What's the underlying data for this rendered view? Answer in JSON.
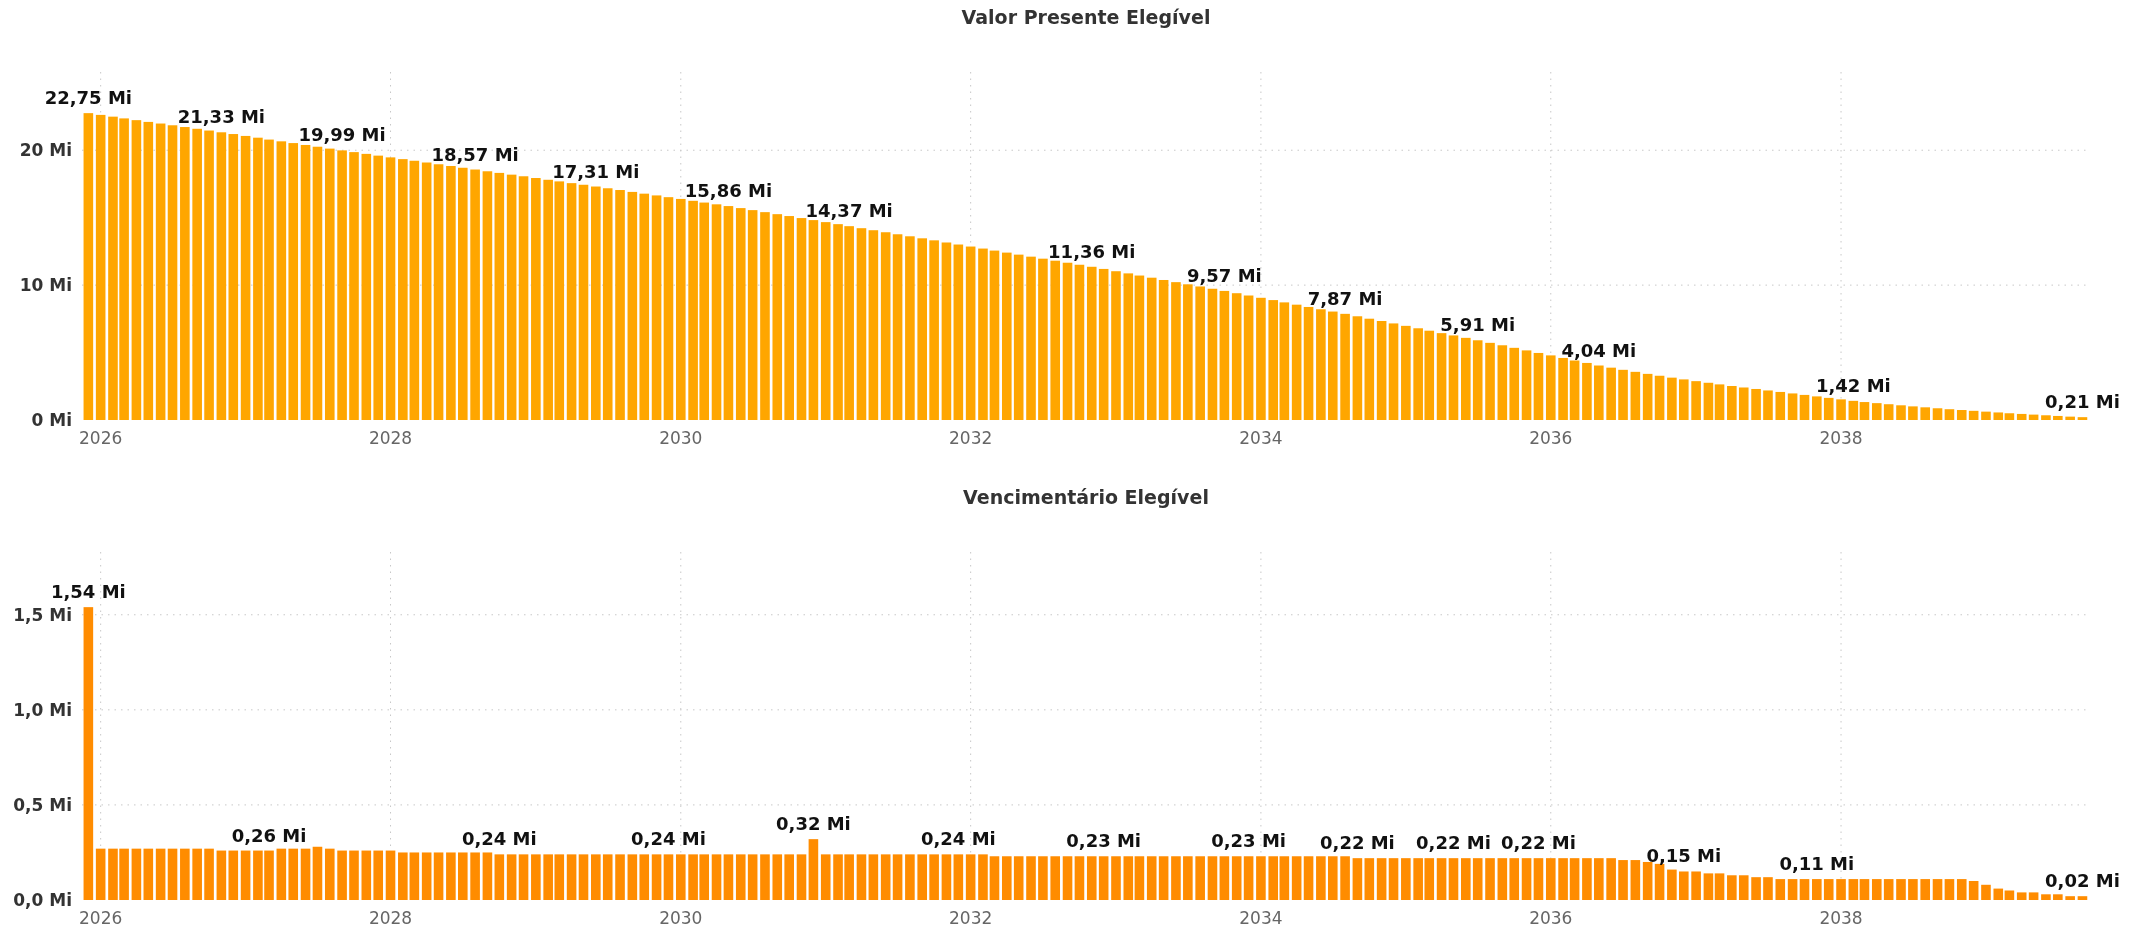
{
  "chart_data": [
    {
      "type": "bar",
      "title": "Valor Presente Elegível",
      "color": "#ffa600",
      "grid": true,
      "x": [
        "2025-12",
        "2026-01",
        "2026-02",
        "2026-03",
        "2026-04",
        "2026-05",
        "2026-06",
        "2026-07",
        "2026-08",
        "2026-09",
        "2026-10",
        "2026-11",
        "2026-12",
        "2027-01",
        "2027-02",
        "2027-03",
        "2027-04",
        "2027-05",
        "2027-06",
        "2027-07",
        "2027-08",
        "2027-09",
        "2027-10",
        "2027-11",
        "2027-12",
        "2028-01",
        "2028-02",
        "2028-03",
        "2028-04",
        "2028-05",
        "2028-06",
        "2028-07",
        "2028-08",
        "2028-09",
        "2028-10",
        "2028-11",
        "2028-12",
        "2029-01",
        "2029-02",
        "2029-03",
        "2029-04",
        "2029-05",
        "2029-06",
        "2029-07",
        "2029-08",
        "2029-09",
        "2029-10",
        "2029-11",
        "2029-12",
        "2030-01",
        "2030-02",
        "2030-03",
        "2030-04",
        "2030-05",
        "2030-06",
        "2030-07",
        "2030-08",
        "2030-09",
        "2030-10",
        "2030-11",
        "2030-12",
        "2031-01",
        "2031-02",
        "2031-03",
        "2031-04",
        "2031-05",
        "2031-06",
        "2031-07",
        "2031-08",
        "2031-09",
        "2031-10",
        "2031-11",
        "2031-12",
        "2032-01",
        "2032-02",
        "2032-03",
        "2032-04",
        "2032-05",
        "2032-06",
        "2032-07",
        "2032-08",
        "2032-09",
        "2032-10",
        "2032-11",
        "2032-12",
        "2033-01",
        "2033-02",
        "2033-03",
        "2033-04",
        "2033-05",
        "2033-06",
        "2033-07",
        "2033-08",
        "2033-09",
        "2033-10",
        "2033-11",
        "2033-12",
        "2034-01",
        "2034-02",
        "2034-03",
        "2034-04",
        "2034-05",
        "2034-06",
        "2034-07",
        "2034-08",
        "2034-09",
        "2034-10",
        "2034-11",
        "2034-12",
        "2035-01",
        "2035-02",
        "2035-03",
        "2035-04",
        "2035-05",
        "2035-06",
        "2035-07",
        "2035-08",
        "2035-09",
        "2035-10",
        "2035-11",
        "2035-12",
        "2036-01",
        "2036-02",
        "2036-03",
        "2036-04",
        "2036-05",
        "2036-06",
        "2036-07",
        "2036-08",
        "2036-09",
        "2036-10",
        "2036-11",
        "2036-12",
        "2037-01",
        "2037-02",
        "2037-03",
        "2037-04",
        "2037-05",
        "2037-06",
        "2037-07",
        "2037-08",
        "2037-09",
        "2037-10",
        "2037-11",
        "2037-12",
        "2038-01",
        "2038-02",
        "2038-03",
        "2038-04",
        "2038-05",
        "2038-06",
        "2038-07",
        "2038-08",
        "2038-09",
        "2038-10",
        "2038-11",
        "2038-12",
        "2039-01",
        "2039-02",
        "2039-03",
        "2039-04",
        "2039-05",
        "2039-06",
        "2039-07",
        "2039-08",
        "2039-09"
      ],
      "values": [
        22.75,
        22.62,
        22.49,
        22.36,
        22.23,
        22.1,
        21.98,
        21.85,
        21.72,
        21.59,
        21.46,
        21.33,
        21.2,
        21.06,
        20.93,
        20.79,
        20.66,
        20.53,
        20.39,
        20.26,
        20.12,
        19.99,
        19.86,
        19.73,
        19.6,
        19.47,
        19.34,
        19.22,
        19.09,
        18.96,
        18.83,
        18.7,
        18.57,
        18.44,
        18.32,
        18.19,
        18.07,
        17.94,
        17.81,
        17.69,
        17.56,
        17.44,
        17.31,
        17.18,
        17.05,
        16.91,
        16.78,
        16.65,
        16.52,
        16.39,
        16.25,
        16.12,
        15.99,
        15.86,
        15.71,
        15.56,
        15.41,
        15.26,
        15.12,
        14.97,
        14.82,
        14.67,
        14.52,
        14.37,
        14.22,
        14.07,
        13.92,
        13.77,
        13.62,
        13.47,
        13.32,
        13.16,
        13.01,
        12.86,
        12.71,
        12.56,
        12.41,
        12.26,
        12.11,
        11.96,
        11.81,
        11.66,
        11.51,
        11.36,
        11.2,
        11.03,
        10.87,
        10.71,
        10.55,
        10.38,
        10.22,
        10.06,
        9.9,
        9.73,
        9.57,
        9.4,
        9.23,
        9.06,
        8.89,
        8.72,
        8.55,
        8.38,
        8.21,
        8.04,
        7.87,
        7.69,
        7.51,
        7.34,
        7.16,
        6.98,
        6.8,
        6.62,
        6.44,
        6.27,
        6.09,
        5.91,
        5.72,
        5.54,
        5.35,
        5.16,
        4.97,
        4.79,
        4.6,
        4.41,
        4.23,
        4.04,
        3.88,
        3.72,
        3.57,
        3.42,
        3.28,
        3.14,
        3.01,
        2.88,
        2.76,
        2.64,
        2.52,
        2.41,
        2.3,
        2.19,
        2.08,
        1.97,
        1.86,
        1.75,
        1.64,
        1.53,
        1.42,
        1.33,
        1.25,
        1.17,
        1.09,
        1.01,
        0.94,
        0.87,
        0.8,
        0.74,
        0.68,
        0.62,
        0.56,
        0.5,
        0.45,
        0.4,
        0.35,
        0.3,
        0.25,
        0.21
      ],
      "value_labels": [
        "22,75 Mi",
        null,
        null,
        null,
        null,
        null,
        null,
        null,
        null,
        null,
        null,
        "21,33 Mi",
        null,
        null,
        null,
        null,
        null,
        null,
        null,
        null,
        null,
        "19,99 Mi",
        null,
        null,
        null,
        null,
        null,
        null,
        null,
        null,
        null,
        null,
        "18,57 Mi",
        null,
        null,
        null,
        null,
        null,
        null,
        null,
        null,
        null,
        "17,31 Mi",
        null,
        null,
        null,
        null,
        null,
        null,
        null,
        null,
        null,
        null,
        "15,86 Mi",
        null,
        null,
        null,
        null,
        null,
        null,
        null,
        null,
        null,
        "14,37 Mi",
        null,
        null,
        null,
        null,
        null,
        null,
        null,
        null,
        null,
        null,
        null,
        null,
        null,
        null,
        null,
        null,
        null,
        null,
        null,
        "11,36 Mi",
        null,
        null,
        null,
        null,
        null,
        null,
        null,
        null,
        null,
        null,
        "9,57 Mi",
        null,
        null,
        null,
        null,
        null,
        null,
        null,
        null,
        null,
        "7,87 Mi",
        null,
        null,
        null,
        null,
        null,
        null,
        null,
        null,
        null,
        null,
        "5,91 Mi",
        null,
        null,
        null,
        null,
        null,
        null,
        null,
        null,
        null,
        "4,04 Mi",
        null,
        null,
        null,
        null,
        null,
        null,
        null,
        null,
        null,
        null,
        null,
        null,
        null,
        null,
        null,
        null,
        null,
        null,
        null,
        null,
        "1,42 Mi",
        null,
        null,
        null,
        null,
        null,
        null,
        null,
        null,
        null,
        null,
        null,
        null,
        null,
        null,
        null,
        null,
        null,
        null,
        "0,21 Mi"
      ],
      "xlim": [
        "2025-11-15",
        "2039-09-20"
      ],
      "xticks": [
        "2026",
        "2028",
        "2030",
        "2032",
        "2034",
        "2036",
        "2038"
      ],
      "ylim": [
        0,
        25.8
      ],
      "yticks": [
        {
          "value": 0,
          "label": "0 Mi"
        },
        {
          "value": 10,
          "label": "10 Mi"
        },
        {
          "value": 20,
          "label": "20 Mi"
        }
      ]
    },
    {
      "type": "bar",
      "title": "Vencimentário Elegível",
      "color": "#ff8c00",
      "grid": true,
      "x": [
        "2025-12",
        "2026-01",
        "2026-02",
        "2026-03",
        "2026-04",
        "2026-05",
        "2026-06",
        "2026-07",
        "2026-08",
        "2026-09",
        "2026-10",
        "2026-11",
        "2026-12",
        "2027-01",
        "2027-02",
        "2027-03",
        "2027-04",
        "2027-05",
        "2027-06",
        "2027-07",
        "2027-08",
        "2027-09",
        "2027-10",
        "2027-11",
        "2027-12",
        "2028-01",
        "2028-02",
        "2028-03",
        "2028-04",
        "2028-05",
        "2028-06",
        "2028-07",
        "2028-08",
        "2028-09",
        "2028-10",
        "2028-11",
        "2028-12",
        "2029-01",
        "2029-02",
        "2029-03",
        "2029-04",
        "2029-05",
        "2029-06",
        "2029-07",
        "2029-08",
        "2029-09",
        "2029-10",
        "2029-11",
        "2029-12",
        "2030-01",
        "2030-02",
        "2030-03",
        "2030-04",
        "2030-05",
        "2030-06",
        "2030-07",
        "2030-08",
        "2030-09",
        "2030-10",
        "2030-11",
        "2030-12",
        "2031-01",
        "2031-02",
        "2031-03",
        "2031-04",
        "2031-05",
        "2031-06",
        "2031-07",
        "2031-08",
        "2031-09",
        "2031-10",
        "2031-11",
        "2031-12",
        "2032-01",
        "2032-02",
        "2032-03",
        "2032-04",
        "2032-05",
        "2032-06",
        "2032-07",
        "2032-08",
        "2032-09",
        "2032-10",
        "2032-11",
        "2032-12",
        "2033-01",
        "2033-02",
        "2033-03",
        "2033-04",
        "2033-05",
        "2033-06",
        "2033-07",
        "2033-08",
        "2033-09",
        "2033-10",
        "2033-11",
        "2033-12",
        "2034-01",
        "2034-02",
        "2034-03",
        "2034-04",
        "2034-05",
        "2034-06",
        "2034-07",
        "2034-08",
        "2034-09",
        "2034-10",
        "2034-11",
        "2034-12",
        "2035-01",
        "2035-02",
        "2035-03",
        "2035-04",
        "2035-05",
        "2035-06",
        "2035-07",
        "2035-08",
        "2035-09",
        "2035-10",
        "2035-11",
        "2035-12",
        "2036-01",
        "2036-02",
        "2036-03",
        "2036-04",
        "2036-05",
        "2036-06",
        "2036-07",
        "2036-08",
        "2036-09",
        "2036-10",
        "2036-11",
        "2036-12",
        "2037-01",
        "2037-02",
        "2037-03",
        "2037-04",
        "2037-05",
        "2037-06",
        "2037-07",
        "2037-08",
        "2037-09",
        "2037-10",
        "2037-11",
        "2037-12",
        "2038-01",
        "2038-02",
        "2038-03",
        "2038-04",
        "2038-05",
        "2038-06",
        "2038-07",
        "2038-08",
        "2038-09",
        "2038-10",
        "2038-11",
        "2038-12",
        "2039-01",
        "2039-02",
        "2039-03",
        "2039-04",
        "2039-05",
        "2039-06",
        "2039-07",
        "2039-08",
        "2039-09"
      ],
      "values": [
        1.54,
        0.27,
        0.27,
        0.27,
        0.27,
        0.27,
        0.27,
        0.27,
        0.27,
        0.27,
        0.27,
        0.26,
        0.26,
        0.26,
        0.26,
        0.26,
        0.27,
        0.27,
        0.27,
        0.28,
        0.27,
        0.26,
        0.26,
        0.26,
        0.26,
        0.26,
        0.25,
        0.25,
        0.25,
        0.25,
        0.25,
        0.25,
        0.25,
        0.25,
        0.24,
        0.24,
        0.24,
        0.24,
        0.24,
        0.24,
        0.24,
        0.24,
        0.24,
        0.24,
        0.24,
        0.24,
        0.24,
        0.24,
        0.24,
        0.24,
        0.24,
        0.24,
        0.24,
        0.24,
        0.24,
        0.24,
        0.24,
        0.24,
        0.24,
        0.24,
        0.32,
        0.24,
        0.24,
        0.24,
        0.24,
        0.24,
        0.24,
        0.24,
        0.24,
        0.24,
        0.24,
        0.24,
        0.24,
        0.24,
        0.24,
        0.23,
        0.23,
        0.23,
        0.23,
        0.23,
        0.23,
        0.23,
        0.23,
        0.23,
        0.23,
        0.23,
        0.23,
        0.23,
        0.23,
        0.23,
        0.23,
        0.23,
        0.23,
        0.23,
        0.23,
        0.23,
        0.23,
        0.23,
        0.23,
        0.23,
        0.23,
        0.23,
        0.23,
        0.23,
        0.23,
        0.22,
        0.22,
        0.22,
        0.22,
        0.22,
        0.22,
        0.22,
        0.22,
        0.22,
        0.22,
        0.22,
        0.22,
        0.22,
        0.22,
        0.22,
        0.22,
        0.22,
        0.22,
        0.22,
        0.22,
        0.22,
        0.22,
        0.21,
        0.21,
        0.2,
        0.19,
        0.16,
        0.15,
        0.15,
        0.14,
        0.14,
        0.13,
        0.13,
        0.12,
        0.12,
        0.11,
        0.11,
        0.11,
        0.11,
        0.11,
        0.11,
        0.11,
        0.11,
        0.11,
        0.11,
        0.11,
        0.11,
        0.11,
        0.11,
        0.11,
        0.11,
        0.1,
        0.08,
        0.06,
        0.05,
        0.04,
        0.04,
        0.03,
        0.03,
        0.02,
        0.02
      ],
      "value_labels": [
        "1,54 Mi",
        null,
        null,
        null,
        null,
        null,
        null,
        null,
        null,
        null,
        null,
        null,
        null,
        null,
        null,
        "0,26 Mi",
        null,
        null,
        null,
        null,
        null,
        null,
        null,
        null,
        null,
        null,
        null,
        null,
        null,
        null,
        null,
        null,
        null,
        null,
        "0,24 Mi",
        null,
        null,
        null,
        null,
        null,
        null,
        null,
        null,
        null,
        null,
        null,
        null,
        null,
        "0,24 Mi",
        null,
        null,
        null,
        null,
        null,
        null,
        null,
        null,
        null,
        null,
        null,
        "0,32 Mi",
        null,
        null,
        null,
        null,
        null,
        null,
        null,
        null,
        null,
        null,
        null,
        "0,24 Mi",
        null,
        null,
        null,
        null,
        null,
        null,
        null,
        null,
        null,
        null,
        null,
        "0,23 Mi",
        null,
        null,
        null,
        null,
        null,
        null,
        null,
        null,
        null,
        null,
        null,
        "0,23 Mi",
        null,
        null,
        null,
        null,
        null,
        null,
        null,
        null,
        "0,22 Mi",
        null,
        null,
        null,
        null,
        null,
        null,
        null,
        "0,22 Mi",
        null,
        null,
        null,
        null,
        null,
        null,
        "0,22 Mi",
        null,
        null,
        null,
        null,
        null,
        null,
        null,
        null,
        null,
        null,
        null,
        "0,15 Mi",
        null,
        null,
        null,
        null,
        null,
        null,
        null,
        null,
        null,
        null,
        "0,11 Mi",
        null,
        null,
        null,
        null,
        null,
        null,
        null,
        null,
        null,
        null,
        null,
        null,
        null,
        null,
        null,
        null,
        null,
        null,
        null,
        null,
        null,
        "0,02 Mi"
      ],
      "xlim": [
        "2025-11-15",
        "2039-09-20"
      ],
      "xticks": [
        "2026",
        "2028",
        "2030",
        "2032",
        "2034",
        "2036",
        "2038"
      ],
      "ylim": [
        0,
        1.83
      ],
      "yticks": [
        {
          "value": 0,
          "label": "0,0 Mi"
        },
        {
          "value": 0.5,
          "label": "0,5 Mi"
        },
        {
          "value": 1,
          "label": "1,0 Mi"
        },
        {
          "value": 1.5,
          "label": "1,5 Mi"
        }
      ]
    }
  ]
}
